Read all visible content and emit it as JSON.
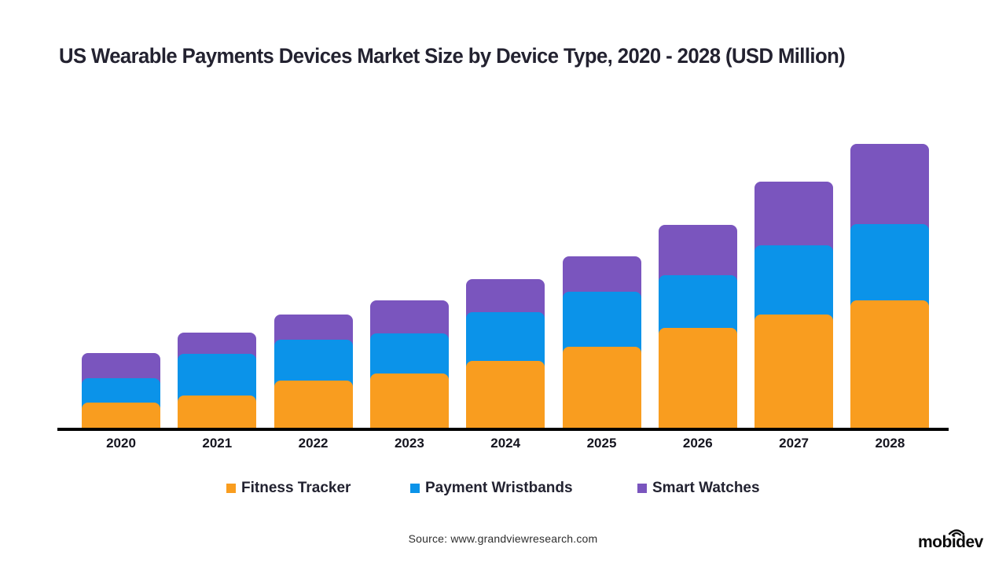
{
  "title": "US Wearable Payments Devices Market Size by Device Type, 2020 - 2028 (USD Million)",
  "source": "Source: www.grandviewresearch.com",
  "logo": {
    "text": "mobidev",
    "icon": "wifi-signal-icon"
  },
  "colors": {
    "background": "#FFFFFF",
    "axis": "#000000",
    "title_text": "#232230",
    "axis_label_text": "#15151F",
    "fitness_tracker": "#F99D1F",
    "payment_wristbands": "#0B93E9",
    "smart_watches": "#7A55BE"
  },
  "chart_data": {
    "type": "bar",
    "stacked": true,
    "title": "US Wearable Payments Devices Market Size by Device Type, 2020 - 2028 (USD Million)",
    "xlabel": "",
    "ylabel": "USD Million",
    "y_axis_visible": false,
    "grid": false,
    "legend_position": "bottom",
    "value_note": "No y-axis scale, gridlines or data labels are shown in the image; values below are relative stacked-segment heights estimated from pixels (baseline = 0).",
    "categories": [
      "2020",
      "2021",
      "2022",
      "2023",
      "2024",
      "2025",
      "2026",
      "2027",
      "2028"
    ],
    "series": [
      {
        "name": "Fitness Tracker",
        "color": "#F99D1F",
        "values": [
          32,
          41,
          60,
          69,
          85,
          103,
          127,
          144,
          162
        ]
      },
      {
        "name": "Payment Wristbands",
        "color": "#0B93E9",
        "values": [
          31,
          53,
          52,
          51,
          62,
          70,
          67,
          88,
          97
        ]
      },
      {
        "name": "Smart Watches",
        "color": "#7A55BE",
        "values": [
          32,
          27,
          32,
          42,
          42,
          45,
          64,
          81,
          102
        ]
      }
    ],
    "totals": [
      95,
      121,
      144,
      162,
      189,
      218,
      258,
      313,
      361
    ]
  }
}
